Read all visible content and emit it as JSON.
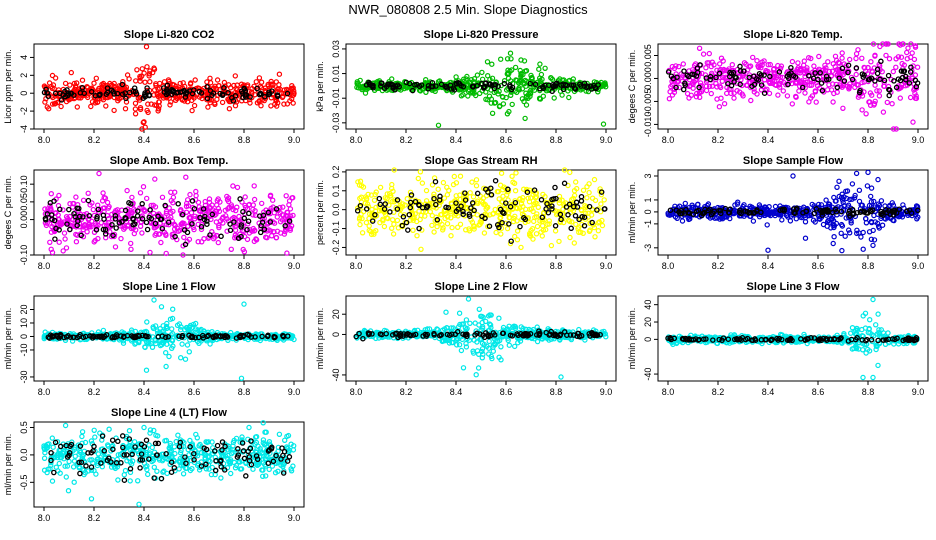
{
  "figure": {
    "title": "NWR_080808  2.5 Min. Slope Diagnostics"
  },
  "chart_data": [
    {
      "type": "scatter",
      "id": "co2",
      "title": "Slope Li-820 CO2",
      "ylabel": "Licor ppm per min.",
      "color": "#ff0000",
      "x_range": [
        8.0,
        9.0
      ],
      "x_ticks": [
        "8.0",
        "8.2",
        "8.4",
        "8.6",
        "8.8",
        "9.0"
      ],
      "ylim": [
        -4,
        5.5
      ],
      "y_ticks": [
        "-4",
        "-2",
        "0",
        "2",
        "4"
      ],
      "y_tick_values": [
        -4,
        -2,
        0,
        2,
        4
      ],
      "spread": 0.7,
      "black_spread": 0.35,
      "burst_center": 8.4,
      "burst_width": 0.04,
      "burst_amp": 2.0,
      "outliers": [
        [
          8.41,
          5.2
        ],
        [
          8.405,
          -3.8
        ],
        [
          8.4,
          -3.2
        ]
      ]
    },
    {
      "type": "scatter",
      "id": "pressure",
      "title": "Slope Li-820 Pressure",
      "ylabel": "kPa per min.",
      "color": "#00bb00",
      "x_range": [
        8.0,
        9.0
      ],
      "x_ticks": [
        "8.0",
        "8.2",
        "8.4",
        "8.6",
        "8.8",
        "9.0"
      ],
      "ylim": [
        -0.035,
        0.034
      ],
      "y_ticks": [
        "-0.03",
        "-0.01",
        "0.01",
        "0.03"
      ],
      "y_tick_values": [
        -0.03,
        -0.01,
        0.01,
        0.03
      ],
      "spread": 0.002,
      "black_spread": 0.0015,
      "burst_center": 8.62,
      "burst_width": 0.14,
      "burst_amp": 0.012,
      "outliers": [
        [
          8.33,
          -0.032
        ],
        [
          8.99,
          -0.031
        ],
        [
          8.62,
          0.022
        ],
        [
          8.66,
          0.021
        ]
      ]
    },
    {
      "type": "scatter",
      "id": "temp",
      "title": "Slope Li-820 Temp.",
      "ylabel": "degees C per min.",
      "color": "#ee00ee",
      "x_range": [
        8.0,
        9.0
      ],
      "x_ticks": [
        "8.0",
        "8.2",
        "8.4",
        "8.6",
        "8.8",
        "9.0"
      ],
      "ylim": [
        -0.011,
        0.0075
      ],
      "y_ticks": [
        "-0.010",
        "-0.005",
        "0.000",
        "0.005"
      ],
      "y_tick_values": [
        -0.01,
        -0.005,
        0.0,
        0.005
      ],
      "spread": 0.0022,
      "black_spread": 0.0015,
      "burst_center": 8.88,
      "burst_width": 0.12,
      "burst_amp": 0.004,
      "outliers": [
        [
          8.98,
          -0.0095
        ],
        [
          8.99,
          0.0068
        ],
        [
          8.96,
          0.0066
        ]
      ]
    },
    {
      "type": "scatter",
      "id": "ambbox",
      "title": "Slope Amb. Box Temp.",
      "ylabel": "degees C per min.",
      "color": "#ee00ee",
      "x_range": [
        8.0,
        9.0
      ],
      "x_ticks": [
        "8.0",
        "8.2",
        "8.4",
        "8.6",
        "8.8",
        "9.0"
      ],
      "ylim": [
        -0.1,
        0.14
      ],
      "y_ticks": [
        "-0.10",
        "0.00",
        "0.05",
        "0.10"
      ],
      "y_tick_values": [
        -0.1,
        0.0,
        0.05,
        0.1
      ],
      "spread": 0.035,
      "black_spread": 0.025,
      "burst_center": 8.5,
      "burst_width": 0.5,
      "burst_amp": 0.0,
      "outliers": [
        [
          8.22,
          0.13
        ],
        [
          8.09,
          -0.08
        ]
      ]
    },
    {
      "type": "scatter",
      "id": "rh",
      "title": "Slope Gas Stream RH",
      "ylabel": "percent per min.",
      "color": "#ffff00",
      "x_range": [
        8.0,
        9.0
      ],
      "x_ticks": [
        "8.0",
        "8.2",
        "8.4",
        "8.6",
        "8.8",
        "9.0"
      ],
      "ylim": [
        -0.24,
        0.21
      ],
      "y_ticks": [
        "-0.2",
        "-0.1",
        "0.0",
        "0.1",
        "0.2"
      ],
      "y_tick_values": [
        -0.2,
        -0.1,
        0.0,
        0.1,
        0.2
      ],
      "spread": 0.075,
      "black_spread": 0.06,
      "burst_center": 8.5,
      "burst_width": 0.5,
      "burst_amp": 0.0,
      "outliers": [
        [
          8.26,
          -0.21
        ],
        [
          8.66,
          -0.2
        ]
      ]
    },
    {
      "type": "scatter",
      "id": "sample",
      "title": "Slope Sample Flow",
      "ylabel": "ml/min per min.",
      "color": "#0000cc",
      "x_range": [
        8.0,
        9.0
      ],
      "x_ticks": [
        "8.0",
        "8.2",
        "8.4",
        "8.6",
        "8.8",
        "9.0"
      ],
      "ylim": [
        -3.6,
        3.5
      ],
      "y_ticks": [
        "-3",
        "-1",
        "0",
        "1",
        "3"
      ],
      "y_tick_values": [
        -3,
        -1,
        0,
        1,
        3
      ],
      "spread": 0.3,
      "black_spread": 0.15,
      "burst_center": 8.75,
      "burst_width": 0.1,
      "burst_amp": 1.5,
      "outliers": [
        [
          8.4,
          -3.2
        ],
        [
          8.5,
          3.0
        ],
        [
          8.8,
          3.3
        ],
        [
          8.82,
          -2.8
        ],
        [
          8.84,
          2.7
        ],
        [
          8.55,
          -2.2
        ]
      ]
    },
    {
      "type": "scatter",
      "id": "line1",
      "title": "Slope Line 1 Flow",
      "ylabel": "ml/min per min.",
      "color": "#00e8e8",
      "x_range": [
        8.0,
        9.0
      ],
      "x_ticks": [
        "8.0",
        "8.2",
        "8.4",
        "8.6",
        "8.8",
        "9.0"
      ],
      "ylim": [
        -33,
        30
      ],
      "y_ticks": [
        "-30",
        "-10",
        "0",
        "10",
        "20"
      ],
      "y_tick_values": [
        -30,
        -10,
        0,
        10,
        20
      ],
      "spread": 1.2,
      "black_spread": 0.6,
      "burst_center": 8.5,
      "burst_width": 0.12,
      "burst_amp": 8.0,
      "outliers": [
        [
          8.44,
          27
        ],
        [
          8.79,
          -31
        ],
        [
          8.8,
          24
        ],
        [
          8.41,
          -25
        ],
        [
          8.47,
          22
        ]
      ]
    },
    {
      "type": "scatter",
      "id": "line2",
      "title": "Slope Line 2 Flow",
      "ylabel": "ml/min per min.",
      "color": "#00e8e8",
      "x_range": [
        8.0,
        9.0
      ],
      "x_ticks": [
        "8.0",
        "8.2",
        "8.4",
        "8.6",
        "8.8",
        "9.0"
      ],
      "ylim": [
        -46,
        38
      ],
      "y_ticks": [
        "-40",
        "0",
        "20"
      ],
      "y_tick_values": [
        -40,
        0,
        20
      ],
      "spread": 2.0,
      "black_spread": 1.2,
      "burst_center": 8.5,
      "burst_width": 0.12,
      "burst_amp": 12.0,
      "outliers": [
        [
          8.45,
          35
        ],
        [
          8.43,
          -33
        ],
        [
          8.82,
          -42
        ],
        [
          8.36,
          22
        ],
        [
          8.58,
          -25
        ]
      ]
    },
    {
      "type": "scatter",
      "id": "line3",
      "title": "Slope Line 3 Flow",
      "ylabel": "ml/min per min.",
      "color": "#00e8e8",
      "x_range": [
        8.0,
        9.0
      ],
      "x_ticks": [
        "8.0",
        "8.2",
        "8.4",
        "8.6",
        "8.8",
        "9.0"
      ],
      "ylim": [
        -48,
        50
      ],
      "y_ticks": [
        "-40",
        "0",
        "20",
        "40"
      ],
      "y_tick_values": [
        -40,
        0,
        20,
        40
      ],
      "spread": 2.0,
      "black_spread": 1.0,
      "burst_center": 8.8,
      "burst_width": 0.05,
      "burst_amp": 14.0,
      "outliers": [
        [
          8.78,
          -44
        ],
        [
          8.82,
          46
        ],
        [
          8.82,
          -44
        ],
        [
          8.79,
          30
        ],
        [
          8.84,
          -30
        ]
      ]
    },
    {
      "type": "scatter",
      "id": "line4",
      "title": "Slope Line 4 (LT) Flow",
      "ylabel": "ml/min per min.",
      "color": "#00e8e8",
      "x_range": [
        8.0,
        9.0
      ],
      "x_ticks": [
        "8.0",
        "8.2",
        "8.4",
        "8.6",
        "8.8",
        "9.0"
      ],
      "ylim": [
        -0.95,
        0.6
      ],
      "y_ticks": [
        "-0.5",
        "0.0",
        "0.5"
      ],
      "y_tick_values": [
        -0.5,
        0.0,
        0.5
      ],
      "spread": 0.2,
      "black_spread": 0.16,
      "burst_center": 8.5,
      "burst_width": 0.5,
      "burst_amp": 0.0,
      "outliers": [
        [
          8.38,
          -0.9
        ],
        [
          8.19,
          -0.8
        ],
        [
          8.4,
          0.5
        ],
        [
          8.82,
          0.5
        ]
      ]
    }
  ]
}
